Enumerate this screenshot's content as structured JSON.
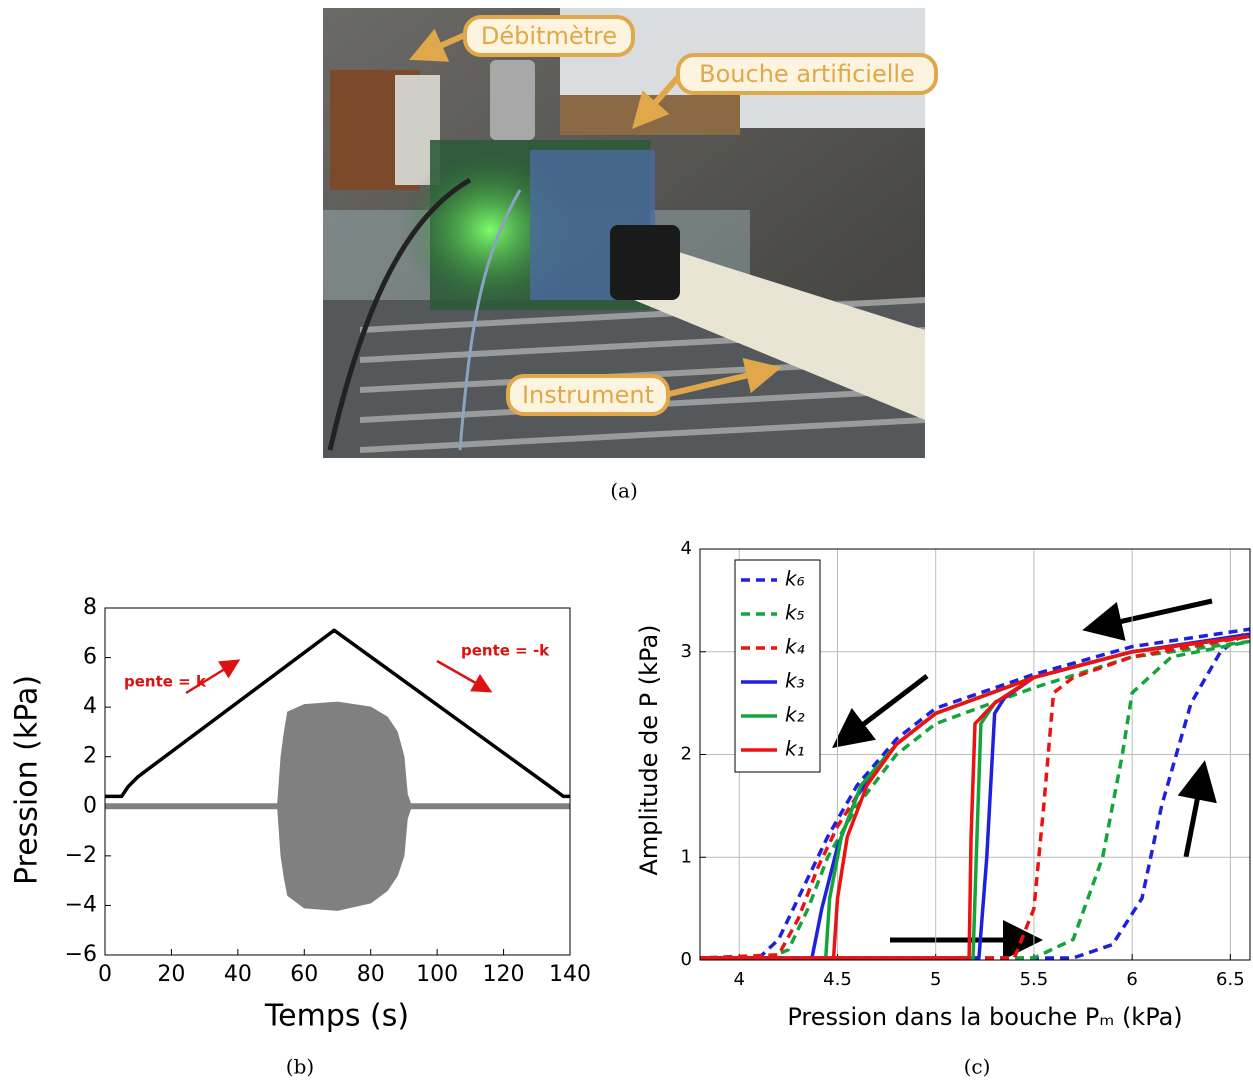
{
  "photo": {
    "labels": [
      "Débitmètre",
      "Bouche artificielle",
      "Instrument"
    ]
  },
  "captions": [
    "(a)",
    "(b)",
    "(c)"
  ],
  "chart_data": [
    {
      "type": "line",
      "xlabel": "Temps (s)",
      "ylabel": "Pression (kPa)",
      "xlim": [
        0,
        140
      ],
      "ylim": [
        -6,
        8
      ],
      "xticks": [
        0,
        20,
        40,
        60,
        80,
        100,
        120,
        140
      ],
      "yticks": [
        {
          "value": -6,
          "label": "−6"
        },
        {
          "value": -4,
          "label": "−4"
        },
        {
          "value": -2,
          "label": "−2"
        },
        0,
        2,
        4,
        6,
        8
      ],
      "grid": false,
      "annotations": [
        "pente = k",
        "pente = -k"
      ],
      "annotation_color": "#dd1111",
      "series": [
        {
          "color": "#000000",
          "x": [
            0,
            5,
            7,
            10,
            69,
            136,
            138,
            140
          ],
          "values": [
            0.4,
            0.4,
            0.8,
            1.2,
            7.1,
            0.6,
            0.4,
            0.4
          ]
        },
        {
          "color": "#808080",
          "x": [
            0,
            52,
            53,
            54,
            55,
            60,
            70,
            80,
            85,
            88,
            90,
            91,
            92,
            140
          ],
          "values": [
            0.1,
            0.1,
            2.0,
            3.0,
            3.8,
            4.1,
            4.2,
            4.0,
            3.6,
            3.0,
            2.0,
            0.5,
            0.1,
            0.1
          ],
          "low": [
            -0.1,
            -0.1,
            -2.0,
            -2.9,
            -3.6,
            -4.1,
            -4.2,
            -3.9,
            -3.4,
            -2.8,
            -2.0,
            -0.5,
            -0.1,
            -0.1
          ]
        }
      ]
    },
    {
      "type": "line",
      "xlabel": "Pression dans la bouche Pₘ (kPa)",
      "ylabel": "Amplitude de P (kPa)",
      "xlim": [
        3.8,
        6.6
      ],
      "ylim": [
        0,
        4
      ],
      "xticks": [
        4,
        4.5,
        5,
        5.5,
        6,
        6.5
      ],
      "yticks": [
        0,
        1,
        2,
        3,
        4
      ],
      "grid": true,
      "legend": "upper left",
      "series": [
        {
          "name": "k₆",
          "color": "#1f1fe0",
          "dash": true,
          "x": [
            3.8,
            5.7,
            5.9,
            6.05,
            6.15,
            6.3,
            6.45,
            6.6,
            6.0,
            5.5,
            5.0,
            4.8,
            4.6,
            4.45,
            4.3,
            4.2,
            4.1,
            3.8
          ],
          "values": [
            0.02,
            0.02,
            0.15,
            0.6,
            1.5,
            2.5,
            3.0,
            3.22,
            3.05,
            2.78,
            2.45,
            2.15,
            1.7,
            1.2,
            0.6,
            0.2,
            0.02,
            0.02
          ]
        },
        {
          "name": "k₅",
          "color": "#13a53a",
          "dash": true,
          "x": [
            3.8,
            5.5,
            5.7,
            5.85,
            5.95,
            6.0,
            6.2,
            6.6,
            6.0,
            5.5,
            5.0,
            4.8,
            4.6,
            4.45,
            4.35,
            4.25,
            4.15,
            3.8
          ],
          "values": [
            0.02,
            0.02,
            0.2,
            1.0,
            2.0,
            2.6,
            2.95,
            3.1,
            2.95,
            2.65,
            2.3,
            2.0,
            1.5,
            1.0,
            0.5,
            0.1,
            0.02,
            0.02
          ]
        },
        {
          "name": "k₄",
          "color": "#ee1111",
          "dash": true,
          "x": [
            3.8,
            5.4,
            5.5,
            5.55,
            5.6,
            5.7,
            6.0,
            6.6,
            6.0,
            5.5,
            5.0,
            4.8,
            4.6,
            4.5,
            4.4,
            4.3,
            4.2,
            3.8
          ],
          "values": [
            0.02,
            0.02,
            0.5,
            1.5,
            2.6,
            2.75,
            2.95,
            3.15,
            3.0,
            2.75,
            2.4,
            2.1,
            1.6,
            1.3,
            0.9,
            0.4,
            0.05,
            0.02
          ]
        },
        {
          "name": "k₃",
          "color": "#1f1fe0",
          "dash": false,
          "x": [
            3.8,
            5.22,
            5.26,
            5.3,
            5.35,
            5.5,
            6.0,
            6.6,
            6.0,
            5.5,
            5.0,
            4.8,
            4.6,
            4.5,
            4.42,
            4.37,
            3.8
          ],
          "values": [
            0.02,
            0.02,
            1.0,
            2.4,
            2.55,
            2.75,
            3.0,
            3.17,
            3.0,
            2.75,
            2.4,
            2.1,
            1.6,
            1.1,
            0.5,
            0.02,
            0.02
          ]
        },
        {
          "name": "k₂",
          "color": "#13a53a",
          "dash": false,
          "x": [
            3.8,
            5.19,
            5.21,
            5.23,
            5.3,
            5.5,
            6.0,
            6.6,
            6.0,
            5.5,
            5.0,
            4.8,
            4.62,
            4.52,
            4.46,
            4.44,
            3.8
          ],
          "values": [
            0.02,
            0.02,
            1.2,
            2.3,
            2.5,
            2.75,
            3.0,
            3.15,
            3.0,
            2.75,
            2.4,
            2.1,
            1.7,
            1.2,
            0.6,
            0.02,
            0.02
          ]
        },
        {
          "name": "k₁",
          "color": "#ee1111",
          "dash": false,
          "x": [
            3.8,
            5.17,
            5.18,
            5.2,
            5.3,
            5.5,
            6.0,
            6.6,
            6.0,
            5.5,
            5.0,
            4.8,
            4.65,
            4.55,
            4.5,
            4.48,
            3.8
          ],
          "values": [
            0.02,
            0.02,
            1.2,
            2.3,
            2.5,
            2.75,
            3.0,
            3.15,
            3.0,
            2.75,
            2.4,
            2.1,
            1.7,
            1.2,
            0.6,
            0.02,
            0.02
          ]
        }
      ]
    }
  ]
}
